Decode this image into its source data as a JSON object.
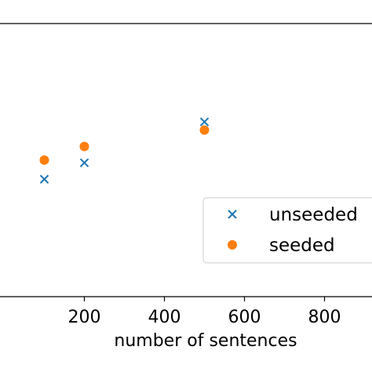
{
  "chart_data": {
    "type": "scatter",
    "title": "",
    "xlabel": "number of sentences",
    "ylabel": "",
    "xlim": [
      -50,
      950
    ],
    "ylim": [
      0.0,
      1.0
    ],
    "x_ticks": [
      200,
      400,
      600,
      800
    ],
    "x_tick_labels": [
      "200",
      "400",
      "600",
      "800"
    ],
    "grid": false,
    "legend_position": "center-right",
    "series": [
      {
        "name": "unseeded",
        "marker": "x",
        "color": "#1f77b4",
        "points": [
          {
            "x": 100,
            "y": 0.43
          },
          {
            "x": 200,
            "y": 0.49
          },
          {
            "x": 500,
            "y": 0.64
          }
        ]
      },
      {
        "name": "seeded",
        "marker": "circle",
        "color": "#ff7f0e",
        "points": [
          {
            "x": 100,
            "y": 0.5
          },
          {
            "x": 200,
            "y": 0.55
          },
          {
            "x": 500,
            "y": 0.61
          }
        ]
      }
    ]
  }
}
